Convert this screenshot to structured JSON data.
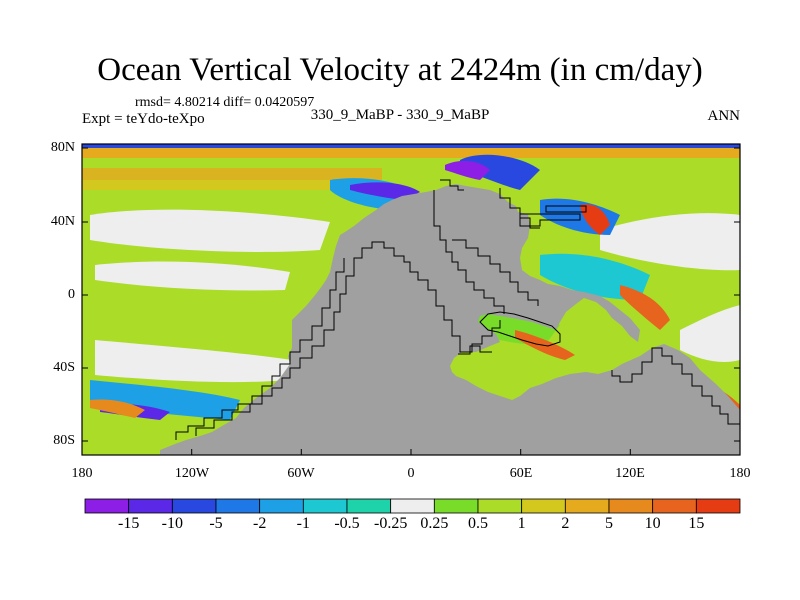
{
  "title": "Ocean Vertical Velocity at 2424m (in cm/day)",
  "stats_text": "rmsd= 4.80214 diff= 0.0420597",
  "expt_text": "Expt = teYdo-teXpo",
  "center_text": "330_9_MaBP - 330_9_MaBP",
  "season_text": "ANN",
  "lat_labels": [
    "80N",
    "40N",
    "0",
    "40S",
    "80S"
  ],
  "lon_labels": [
    "180",
    "120W",
    "60W",
    "0",
    "60E",
    "120E",
    "180"
  ],
  "colorbar": {
    "labels": [
      "-15",
      "-10",
      "-5",
      "-2",
      "-1",
      "-0.5",
      "-0.25",
      "0.25",
      "0.5",
      "1",
      "2",
      "5",
      "10",
      "15"
    ],
    "colors": [
      "#8c1ee6",
      "#5a28e6",
      "#2848e0",
      "#1e78e6",
      "#1ea0e6",
      "#1ec8d2",
      "#1ed2aa",
      "#eeeeee",
      "#78dc28",
      "#aadc28",
      "#d2c81e",
      "#e6aa1e",
      "#e68a1e",
      "#e6641e",
      "#e63c14"
    ]
  },
  "colors": {
    "land": "#a0a0a0",
    "background": "#ffffff"
  }
}
